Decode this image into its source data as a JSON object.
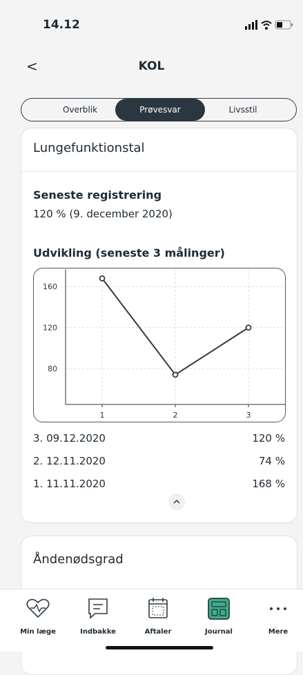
{
  "status_bar": {
    "time": "14.12"
  },
  "nav": {
    "back": "<",
    "title": "KOL"
  },
  "segments": {
    "items": [
      "Overblik",
      "Prøvesvar",
      "Livsstil"
    ],
    "selected": 1
  },
  "card": {
    "title": "Lungefunktionstal",
    "latest_heading": "Seneste registrering",
    "latest_value": "120 % (9. december 2020)",
    "chart_heading": "Udvikling (seneste 3 målinger)",
    "measurements": [
      {
        "label": "3. 09.12.2020",
        "value": "120 %"
      },
      {
        "label": "2. 12.11.2020",
        "value": "74 %"
      },
      {
        "label": "1. 11.11.2020",
        "value": "168 %"
      }
    ]
  },
  "chart_data": {
    "type": "line",
    "x": [
      1,
      2,
      3
    ],
    "values": [
      168,
      74,
      120
    ],
    "xlim": [
      0.5,
      3.5
    ],
    "ylim": [
      45,
      177
    ],
    "xticks": [
      1,
      2,
      3
    ],
    "yticks": [
      80,
      120,
      160
    ],
    "grid": true,
    "color": "#2f3a44"
  },
  "card2": {
    "title": "Åndenødsgrad"
  },
  "tab_bar": {
    "items": [
      "Min læge",
      "Indbakke",
      "Aftaler",
      "Journal",
      "Mere"
    ],
    "active": 3
  }
}
